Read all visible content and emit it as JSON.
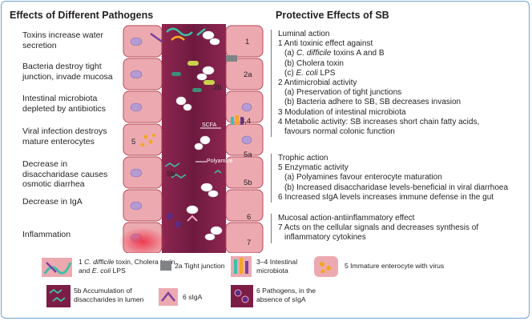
{
  "left_panel": {
    "title": "Effects of Different Pathogens",
    "items": [
      "Toxins increase water secretion",
      "Bacteria destroy tight junction, invade mucosa",
      "Intestinal microbiota depleted by antibiotics",
      "Viral infection destroys mature enterocytes",
      "Decrease in disaccharidase causes osmotic diarrhea",
      "Decrease in IgA",
      "Inflammation"
    ]
  },
  "right_panel": {
    "title": "Protective Effects of  SB",
    "luminal": {
      "heading": "Luminal action",
      "l1": "1 Anti toxinic effect against",
      "l1a_pre": "(a) ",
      "l1a_italic": "C. difficile",
      "l1a_post": " toxins A and B",
      "l1b": "(b) Cholera toxin",
      "l1c_pre": "(c) ",
      "l1c_italic": "E. coli",
      "l1c_post": " LPS",
      "l2": "2 Antimicrobial activity",
      "l2a": "(a) Preservation of tight junctions",
      "l2b": "(b) Bacteria adhere to SB, SB decreases invasion",
      "l3": "3 Modulation of intestinal microbiota",
      "l4a": "4 Metabolic activity: SB increases short chain fatty acids,",
      "l4b": "favours normal colonic function"
    },
    "trophic": {
      "heading": "Trophic action",
      "l5": "5 Enzymatic activity",
      "l5a": "(a) Polyamines favour enterocyte maturation",
      "l5b": "(b) Increased disaccharidase levels-beneficial in viral diarrhoea",
      "l6": "6 Increased sIgA levels increases immune defense in the gut"
    },
    "mucosal": {
      "heading": "Mucosal action-antiinflammatory effect",
      "l7a": "7 Acts on the cellular signals and decreases synthesis of",
      "l7b": "inflammatory cytokines"
    }
  },
  "diagram": {
    "labels": [
      "1",
      "2a",
      "2b",
      "3,4",
      "5",
      "5a",
      "5b",
      "5b",
      "6",
      "7"
    ],
    "scfa": "SCFA",
    "polyamine": "Polyamine"
  },
  "legend": {
    "l1_pre": "1 ",
    "l1_i1": "C. difficile",
    "l1_mid": " toxin, Cholera toxin and ",
    "l1_i2": "E. coli",
    "l1_post": " LPS",
    "l2a": "2a Tight junction",
    "l34": "3–4 Intestinal microbiota",
    "l5": "5 Immature enterocyte with virus",
    "l5b": "5b Accumulation of disaccharides in lumen",
    "l6": "6 sIgA",
    "l6p": "6 Pathogens, in the absence of sIgA"
  },
  "colors": {
    "cell": "#ecaab0",
    "cell_border": "#b8495a",
    "lumen": "#7c1d45",
    "nucleus": "#b59bd3",
    "tight_junction": "#808285",
    "panel_rule": "#7a7a7a"
  }
}
